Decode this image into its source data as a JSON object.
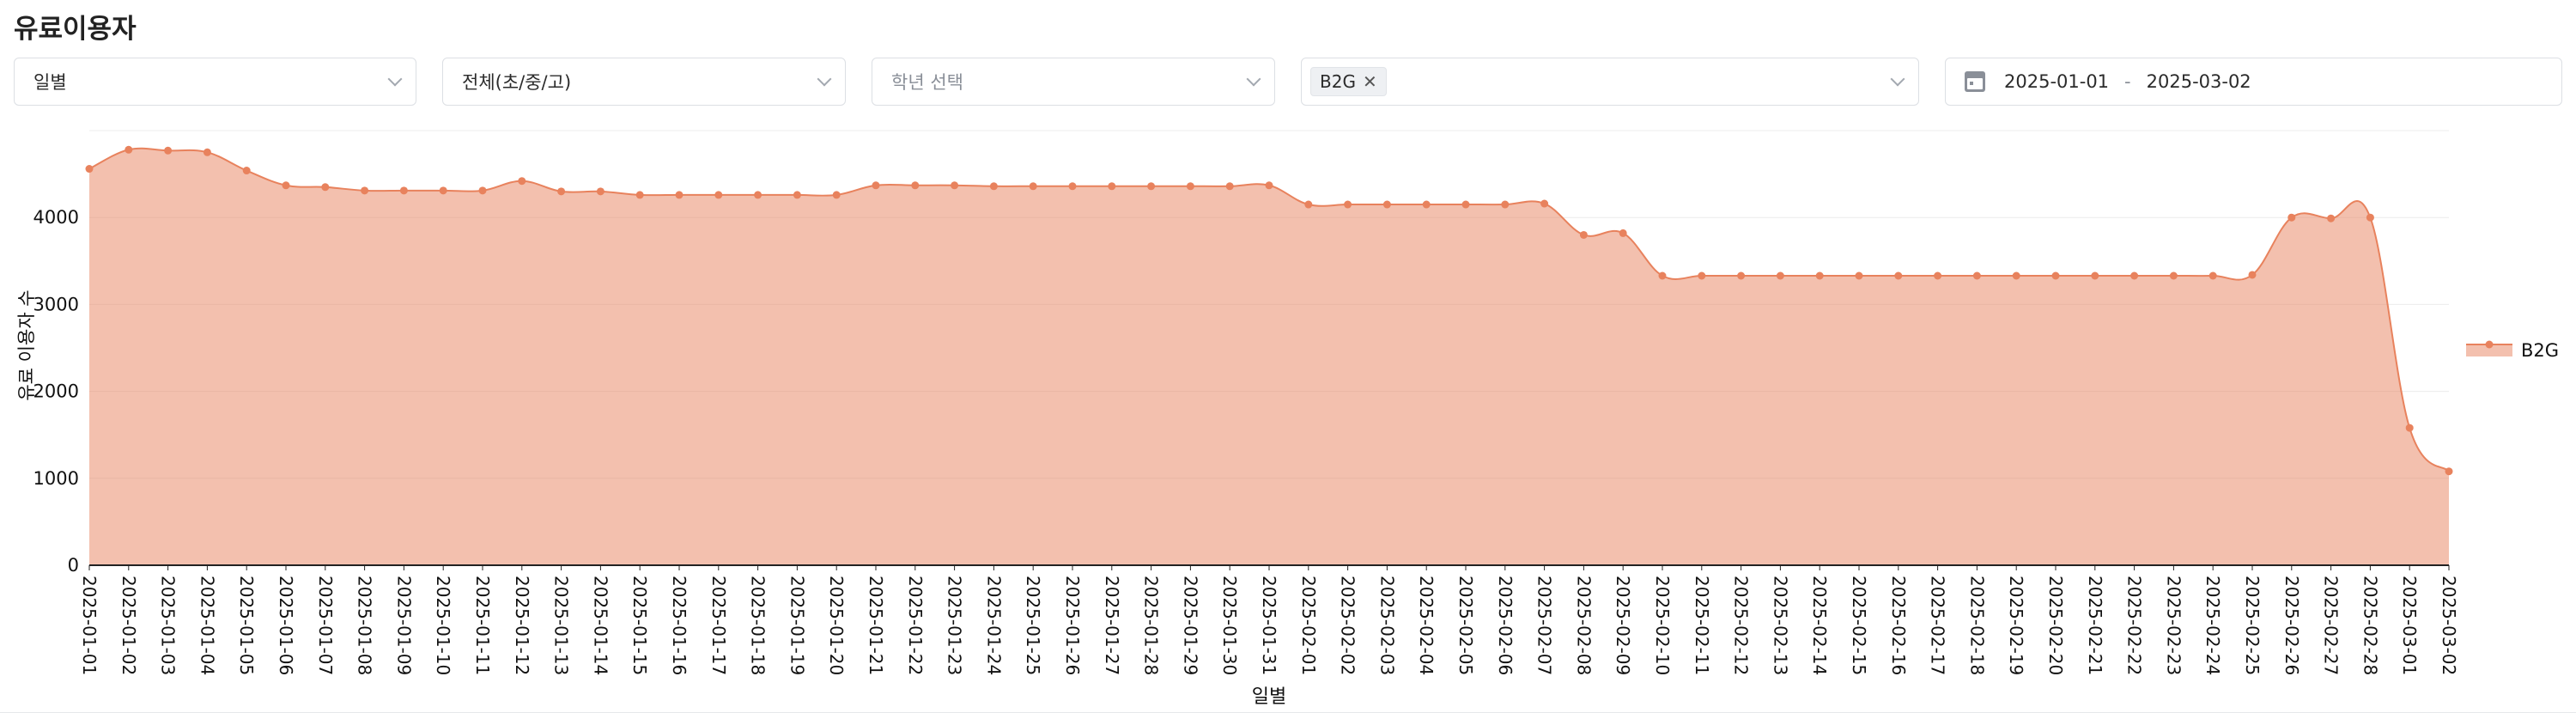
{
  "page": {
    "title": "유료이용자"
  },
  "filters": {
    "period": "일별",
    "school_level": "전체(초/중/고)",
    "grade_placeholder": "학년 선택",
    "tags": [
      "B2G"
    ],
    "date_start": "2025-01-01",
    "date_sep": "-",
    "date_end": "2025-03-02"
  },
  "chart_data": {
    "type": "area",
    "xlabel": "일별",
    "ylabel": "유료 이용자 수",
    "ylim": [
      0,
      5000
    ],
    "yticks": [
      0,
      1000,
      2000,
      3000,
      4000
    ],
    "grid": true,
    "legend_position": "right",
    "x": [
      "2025-01-01",
      "2025-01-02",
      "2025-01-03",
      "2025-01-04",
      "2025-01-05",
      "2025-01-06",
      "2025-01-07",
      "2025-01-08",
      "2025-01-09",
      "2025-01-10",
      "2025-01-11",
      "2025-01-12",
      "2025-01-13",
      "2025-01-14",
      "2025-01-15",
      "2025-01-16",
      "2025-01-17",
      "2025-01-18",
      "2025-01-19",
      "2025-01-20",
      "2025-01-21",
      "2025-01-22",
      "2025-01-23",
      "2025-01-24",
      "2025-01-25",
      "2025-01-26",
      "2025-01-27",
      "2025-01-28",
      "2025-01-29",
      "2025-01-30",
      "2025-01-31",
      "2025-02-01",
      "2025-02-02",
      "2025-02-03",
      "2025-02-04",
      "2025-02-05",
      "2025-02-06",
      "2025-02-07",
      "2025-02-08",
      "2025-02-09",
      "2025-02-10",
      "2025-02-11",
      "2025-02-12",
      "2025-02-13",
      "2025-02-14",
      "2025-02-15",
      "2025-02-16",
      "2025-02-17",
      "2025-02-18",
      "2025-02-19",
      "2025-02-20",
      "2025-02-21",
      "2025-02-22",
      "2025-02-23",
      "2025-02-24",
      "2025-02-25",
      "2025-02-26",
      "2025-02-27",
      "2025-02-28",
      "2025-03-01",
      "2025-03-02"
    ],
    "series": [
      {
        "name": "B2G",
        "color": "#e8825d",
        "values": [
          4560,
          4780,
          4770,
          4750,
          4540,
          4370,
          4350,
          4310,
          4310,
          4310,
          4310,
          4420,
          4300,
          4300,
          4260,
          4260,
          4260,
          4260,
          4260,
          4260,
          4370,
          4370,
          4370,
          4360,
          4360,
          4360,
          4360,
          4360,
          4360,
          4360,
          4370,
          4150,
          4150,
          4150,
          4150,
          4150,
          4150,
          4160,
          3800,
          3820,
          3330,
          3330,
          3330,
          3330,
          3330,
          3330,
          3330,
          3330,
          3330,
          3330,
          3330,
          3330,
          3330,
          3330,
          3330,
          3340,
          4000,
          3990,
          4000,
          1580,
          1080
        ]
      }
    ]
  }
}
